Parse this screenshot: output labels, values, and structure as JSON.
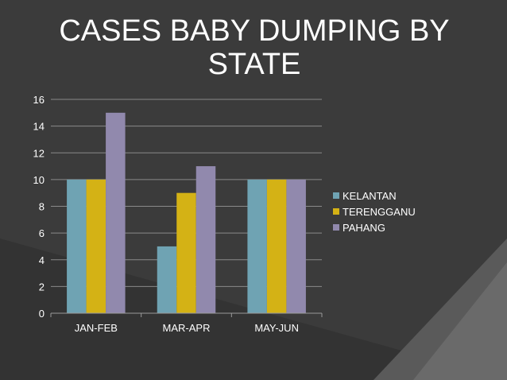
{
  "slide": {
    "title": "CASES BABY DUMPING BY STATE",
    "background_color": "#3a3a3a"
  },
  "chart_data": {
    "type": "bar",
    "title": "",
    "xlabel": "",
    "ylabel": "",
    "categories": [
      "JAN-FEB",
      "MAR-APR",
      "MAY-JUN"
    ],
    "series": [
      {
        "name": "KELANTAN",
        "color": "#6fa3b3",
        "values": [
          10,
          5,
          10
        ]
      },
      {
        "name": "TERENGGANU",
        "color": "#d4b215",
        "values": [
          10,
          9,
          10
        ]
      },
      {
        "name": "PAHANG",
        "color": "#9189ad",
        "values": [
          15,
          11,
          10
        ]
      }
    ],
    "ylim": [
      0,
      16
    ],
    "yticks": [
      0,
      2,
      4,
      6,
      8,
      10,
      12,
      14,
      16
    ],
    "grid": true,
    "legend_position": "right"
  }
}
